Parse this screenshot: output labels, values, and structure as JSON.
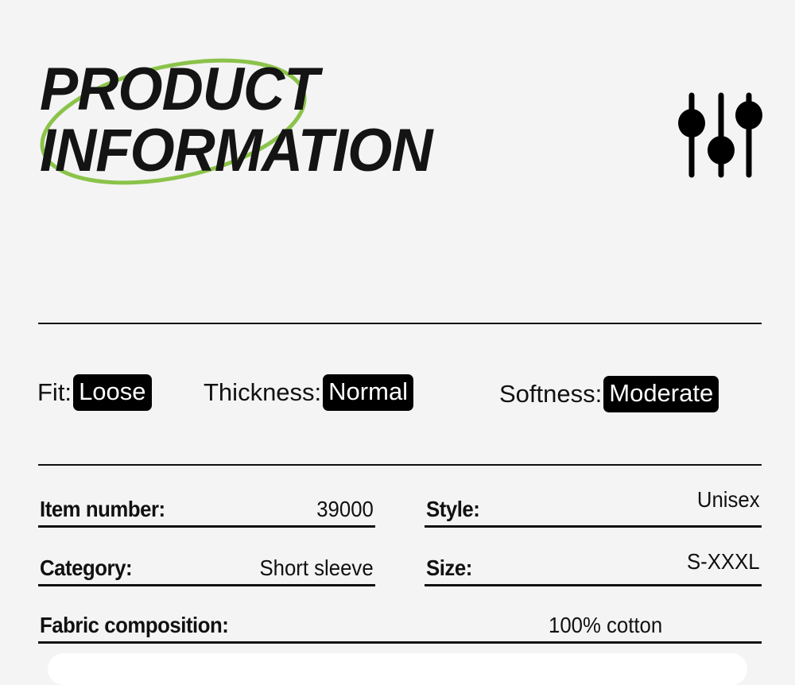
{
  "header": {
    "title_line1": "PRODUCT",
    "title_line2": "INFORMATION",
    "accent_color": "#8bc34a",
    "icon": "sliders-icon"
  },
  "attributes": [
    {
      "label": "Fit:",
      "value": "Loose"
    },
    {
      "label": "Thickness:",
      "value": "Normal"
    },
    {
      "label": "Softness:",
      "value": "Moderate"
    }
  ],
  "details": {
    "item_number": {
      "label": "Item number:",
      "value": "39000"
    },
    "style": {
      "label": "Style:",
      "value": "Unisex"
    },
    "category": {
      "label": "Category:",
      "value": "Short sleeve"
    },
    "size": {
      "label": "Size:",
      "value": "S-XXXL"
    },
    "fabric": {
      "label": "Fabric composition:",
      "value": "100% cotton"
    }
  }
}
